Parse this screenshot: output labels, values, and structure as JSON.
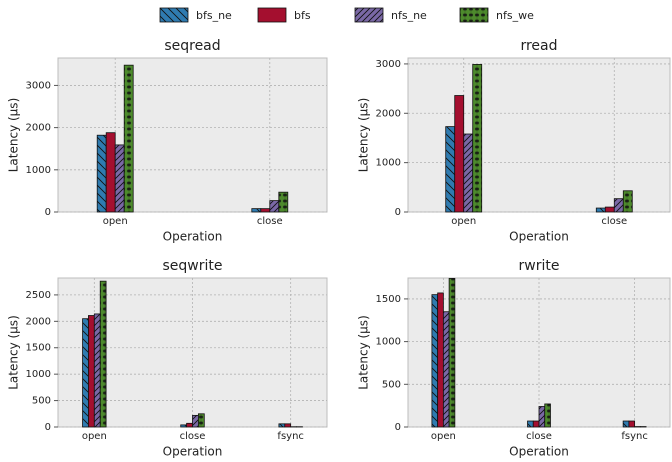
{
  "legend": {
    "series": [
      {
        "name": "bfs_ne",
        "color": "#2f7bb0",
        "hatch": "backslash"
      },
      {
        "name": "bfs",
        "color": "#a40f2f",
        "hatch": "none"
      },
      {
        "name": "nfs_ne",
        "color": "#7a68a6",
        "hatch": "slash"
      },
      {
        "name": "nfs_we",
        "color": "#4d8a2c",
        "hatch": "star"
      }
    ]
  },
  "chart_data": [
    {
      "type": "bar",
      "title": "seqread",
      "xlabel": "Operation",
      "ylabel": "Latency (µs)",
      "categories": [
        "open",
        "close"
      ],
      "series": [
        {
          "values": [
            1820,
            80
          ]
        },
        {
          "values": [
            1880,
            80
          ]
        },
        {
          "values": [
            1590,
            270
          ]
        },
        {
          "values": [
            3480,
            470
          ]
        }
      ],
      "ylim": [
        0,
        3650
      ],
      "yticks": [
        0,
        1000,
        2000,
        3000
      ],
      "grid": true
    },
    {
      "type": "bar",
      "title": "rread",
      "xlabel": "Operation",
      "ylabel": "Latency (µs)",
      "categories": [
        "open",
        "close"
      ],
      "series": [
        {
          "values": [
            1730,
            80
          ]
        },
        {
          "values": [
            2360,
            100
          ]
        },
        {
          "values": [
            1580,
            270
          ]
        },
        {
          "values": [
            2990,
            430
          ]
        }
      ],
      "ylim": [
        0,
        3120
      ],
      "yticks": [
        0,
        1000,
        2000,
        3000
      ],
      "grid": true
    },
    {
      "type": "bar",
      "title": "seqwrite",
      "xlabel": "Operation",
      "ylabel": "Latency (µs)",
      "categories": [
        "open",
        "close",
        "fsync"
      ],
      "series": [
        {
          "values": [
            2050,
            40,
            60
          ]
        },
        {
          "values": [
            2110,
            70,
            60
          ]
        },
        {
          "values": [
            2140,
            220,
            5
          ]
        },
        {
          "values": [
            2760,
            250,
            5
          ]
        }
      ],
      "ylim": [
        0,
        2820
      ],
      "yticks": [
        0,
        500,
        1000,
        1500,
        2000,
        2500
      ],
      "grid": true
    },
    {
      "type": "bar",
      "title": "rwrite",
      "xlabel": "Operation",
      "ylabel": "Latency (µs)",
      "categories": [
        "open",
        "close",
        "fsync"
      ],
      "series": [
        {
          "values": [
            1550,
            70,
            70
          ]
        },
        {
          "values": [
            1570,
            70,
            70
          ]
        },
        {
          "values": [
            1350,
            240,
            5
          ]
        },
        {
          "values": [
            1740,
            270,
            5
          ]
        }
      ],
      "ylim": [
        0,
        1745
      ],
      "yticks": [
        0,
        500,
        1000,
        1500
      ],
      "grid": true
    }
  ]
}
